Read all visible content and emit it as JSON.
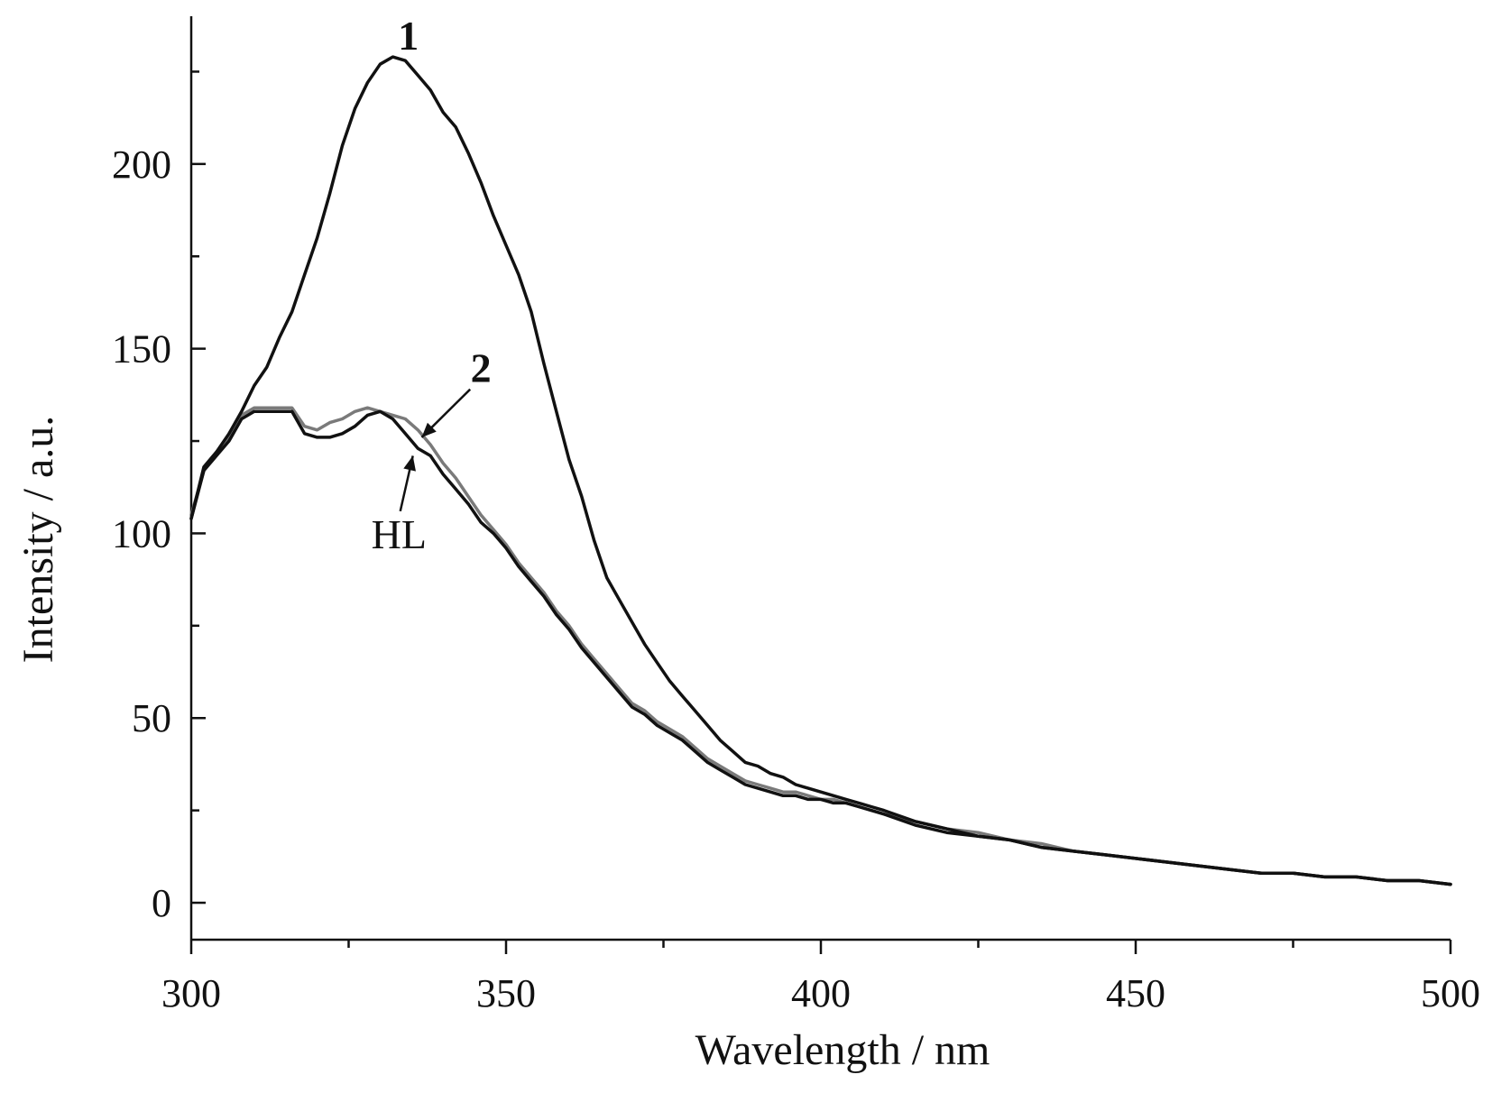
{
  "chart_data": {
    "type": "line",
    "title": "",
    "xlabel": "Wavelength / nm",
    "ylabel": "Intensity / a.u.",
    "xlim": [
      300,
      500
    ],
    "ylim": [
      -10,
      240
    ],
    "x_ticks": [
      300,
      350,
      400,
      450,
      500
    ],
    "y_ticks": [
      0,
      50,
      100,
      150,
      200
    ],
    "grid": false,
    "legend": "none",
    "series": [
      {
        "name": "1",
        "color": "#111111",
        "x": [
          300,
          302,
          304,
          306,
          308,
          310,
          312,
          314,
          316,
          318,
          320,
          322,
          324,
          326,
          328,
          330,
          332,
          334,
          336,
          338,
          340,
          342,
          344,
          346,
          348,
          350,
          352,
          354,
          356,
          358,
          360,
          362,
          364,
          366,
          368,
          370,
          372,
          374,
          376,
          378,
          380,
          382,
          384,
          386,
          388,
          390,
          392,
          394,
          396,
          398,
          400,
          402,
          404,
          406,
          408,
          410,
          415,
          420,
          425,
          430,
          435,
          440,
          445,
          450,
          455,
          460,
          465,
          470,
          475,
          480,
          485,
          490,
          495,
          500
        ],
        "y": [
          104,
          118,
          122,
          127,
          133,
          140,
          145,
          153,
          160,
          170,
          180,
          192,
          205,
          215,
          222,
          227,
          229,
          228,
          224,
          220,
          214,
          210,
          203,
          195,
          186,
          178,
          170,
          160,
          146,
          133,
          120,
          110,
          98,
          88,
          82,
          76,
          70,
          65,
          60,
          56,
          52,
          48,
          44,
          41,
          38,
          37,
          35,
          34,
          32,
          31,
          30,
          29,
          28,
          27,
          26,
          25,
          22,
          20,
          18,
          17,
          15,
          14,
          13,
          12,
          11,
          10,
          9,
          8,
          8,
          7,
          7,
          6,
          6,
          5
        ]
      },
      {
        "name": "HL",
        "color": "#111111",
        "x": [
          300,
          302,
          304,
          306,
          308,
          310,
          312,
          314,
          316,
          318,
          320,
          322,
          324,
          326,
          328,
          330,
          332,
          334,
          336,
          338,
          340,
          342,
          344,
          346,
          348,
          350,
          352,
          354,
          356,
          358,
          360,
          362,
          364,
          366,
          368,
          370,
          372,
          374,
          376,
          378,
          380,
          382,
          384,
          386,
          388,
          390,
          392,
          394,
          396,
          398,
          400,
          402,
          404,
          406,
          408,
          410,
          415,
          420,
          425,
          430,
          435,
          440,
          445,
          450,
          455,
          460,
          465,
          470,
          475,
          480,
          485,
          490,
          495,
          500
        ],
        "y": [
          104,
          117,
          121,
          125,
          131,
          133,
          133,
          133,
          133,
          127,
          126,
          126,
          127,
          129,
          132,
          133,
          131,
          127,
          123,
          121,
          116,
          112,
          108,
          103,
          100,
          96,
          91,
          87,
          83,
          78,
          74,
          69,
          65,
          61,
          57,
          53,
          51,
          48,
          46,
          44,
          41,
          38,
          36,
          34,
          32,
          31,
          30,
          29,
          29,
          28,
          28,
          27,
          27,
          26,
          25,
          24,
          21,
          19,
          18,
          17,
          15,
          14,
          13,
          12,
          11,
          10,
          9,
          8,
          8,
          7,
          7,
          6,
          6,
          5
        ]
      },
      {
        "name": "2",
        "color": "#7a7a7a",
        "x": [
          300,
          302,
          304,
          306,
          308,
          310,
          312,
          314,
          316,
          318,
          320,
          322,
          324,
          326,
          328,
          330,
          332,
          334,
          336,
          338,
          340,
          342,
          344,
          346,
          348,
          350,
          352,
          354,
          356,
          358,
          360,
          362,
          364,
          366,
          368,
          370,
          372,
          374,
          376,
          378,
          380,
          382,
          384,
          386,
          388,
          390,
          392,
          394,
          396,
          398,
          400,
          402,
          404,
          406,
          408,
          410,
          415,
          420,
          425,
          430,
          435,
          440,
          445,
          450,
          455,
          460,
          465,
          470,
          475,
          480,
          485,
          490,
          495,
          500
        ],
        "y": [
          105,
          117,
          122,
          126,
          132,
          134,
          134,
          134,
          134,
          129,
          128,
          130,
          131,
          133,
          134,
          133,
          132,
          131,
          128,
          124,
          119,
          115,
          110,
          105,
          101,
          97,
          92,
          88,
          84,
          79,
          75,
          70,
          66,
          62,
          58,
          54,
          52,
          49,
          47,
          45,
          42,
          39,
          37,
          35,
          33,
          32,
          31,
          30,
          30,
          29,
          28,
          28,
          27,
          26,
          25,
          24,
          22,
          20,
          19,
          17,
          16,
          14,
          13,
          12,
          11,
          10,
          9,
          8,
          8,
          7,
          7,
          6,
          6,
          5
        ]
      }
    ],
    "annotations": [
      {
        "text": "1",
        "bold": true
      },
      {
        "text": "2",
        "bold": true
      },
      {
        "text": "HL",
        "bold": false
      }
    ]
  }
}
